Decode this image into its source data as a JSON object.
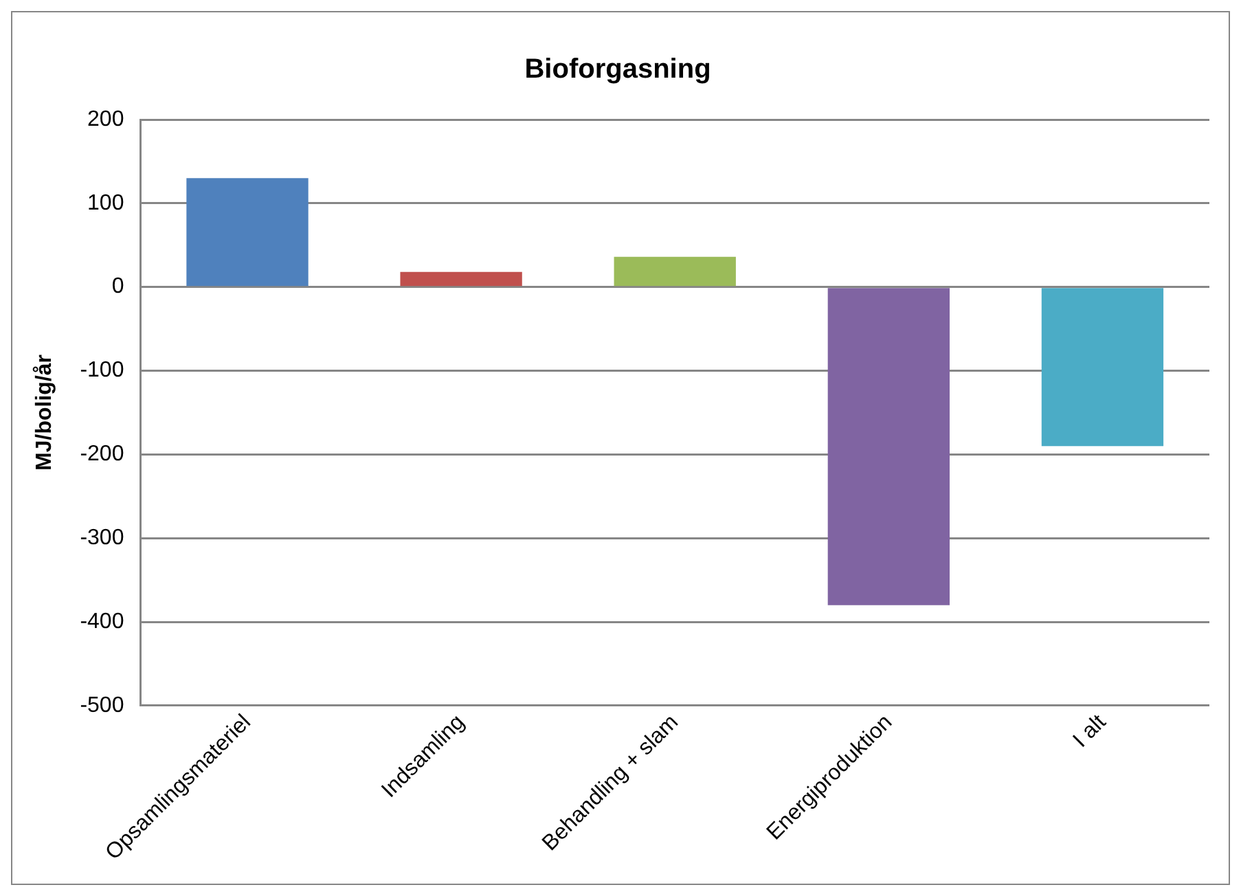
{
  "chart_data": {
    "type": "bar",
    "title": "Bioforgasning",
    "ylabel": "MJ/bolig/år",
    "categories": [
      "Opsamlingsmateriel",
      "Indsamling",
      "Behandling + slam",
      "Energiproduktion",
      "I alt"
    ],
    "values": [
      130,
      18,
      36,
      -380,
      -190
    ],
    "colors": [
      "#4f81bd",
      "#c0504d",
      "#9bbb59",
      "#8064a2",
      "#4bacc6"
    ],
    "ylim": [
      -500,
      200
    ],
    "yticks": [
      -500,
      -400,
      -300,
      -200,
      -100,
      0,
      100,
      200
    ],
    "grid": "y",
    "legend": false
  }
}
